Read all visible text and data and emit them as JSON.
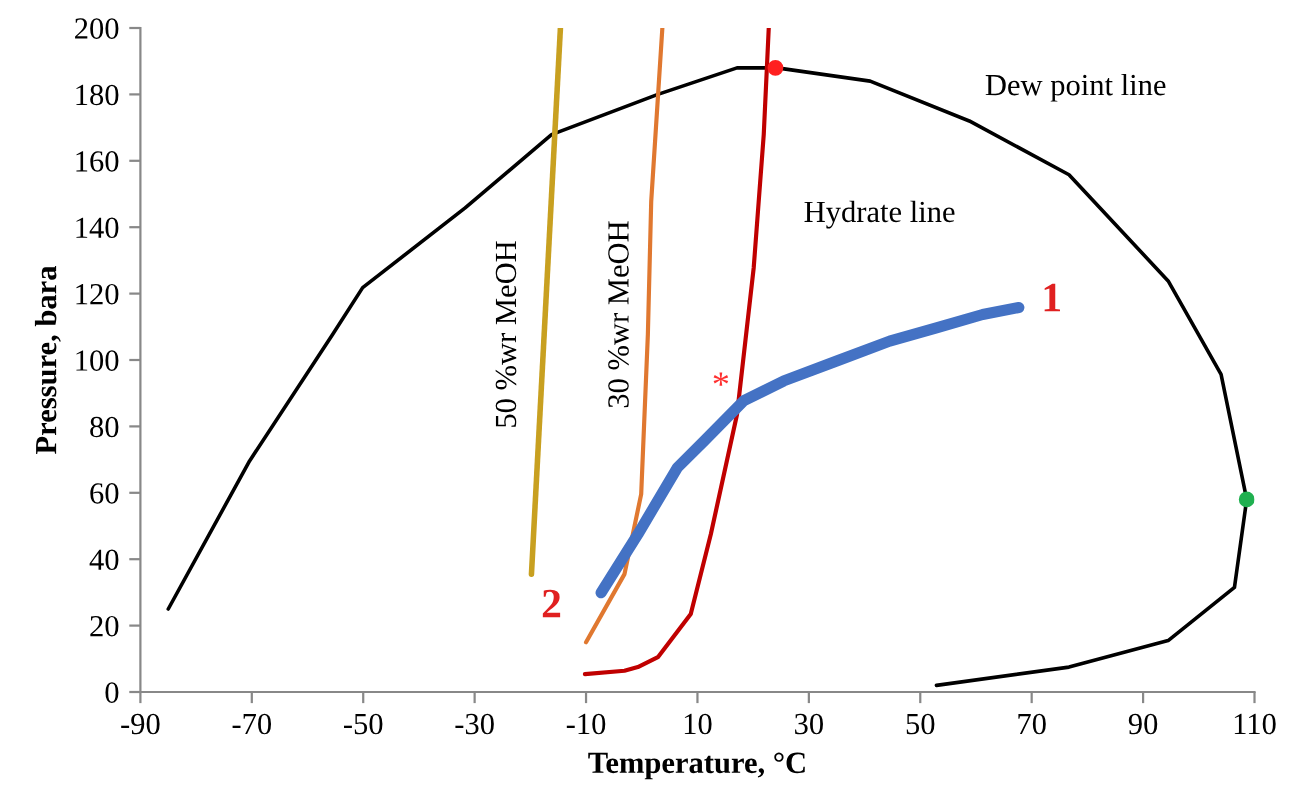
{
  "chart_data": {
    "type": "line",
    "xlabel": "Temperature, °C",
    "ylabel": "Pressure, bara",
    "xlim": [
      -90,
      110
    ],
    "xticks": [
      -90,
      -70,
      -50,
      -30,
      -10,
      10,
      30,
      50,
      70,
      90,
      110
    ],
    "ylim": [
      0,
      200
    ],
    "yticks": [
      0,
      20,
      40,
      60,
      80,
      100,
      120,
      140,
      160,
      180,
      200
    ],
    "grid": false,
    "legend": false,
    "line_style": "solid",
    "series": [
      {
        "name": "Dew point line",
        "color": "#000000",
        "x": [
          -85,
          -70.4,
          -55.5,
          -50.1,
          -31.7,
          -16.2,
          2.9,
          17.1,
          24.3,
          41,
          58.8,
          76.7,
          94.5,
          104,
          108.6,
          106.4,
          94.5,
          76.7,
          52.9
        ],
        "values": [
          25,
          69.6,
          107.7,
          121.8,
          145.8,
          167.9,
          180,
          188,
          188,
          184,
          172,
          155.8,
          123.8,
          95.7,
          58,
          31.5,
          15.5,
          7.5,
          2
        ]
      },
      {
        "name": "Hydrate line",
        "color": "#c00000",
        "x": [
          -10.2,
          -3.1,
          -0.7,
          2.9,
          8.8,
          12.4,
          17.1,
          20.1,
          21.9,
          22.8
        ],
        "values": [
          5.4,
          6.4,
          7.5,
          10.5,
          23.5,
          47.5,
          83.6,
          127.8,
          167.9,
          200
        ]
      },
      {
        "name": "30 %wr MeOH",
        "color": "#e07830",
        "x": [
          -10,
          -3.1,
          -0.1,
          1.1,
          1.7,
          3.7
        ],
        "values": [
          15,
          35.5,
          59.6,
          107.7,
          147.8,
          200
        ]
      },
      {
        "name": "50 %wr MeOH",
        "color": "#c8a020",
        "x": [
          -19.8,
          -14.6
        ],
        "values": [
          35.5,
          200
        ]
      },
      {
        "color": "#4472c4",
        "x": [
          -7.3,
          -0.7,
          6.4,
          11.2,
          18.3,
          25.5,
          35,
          44.5,
          52.9,
          61.2,
          67.7
        ],
        "values": [
          29.9,
          47.5,
          67.6,
          75.6,
          87.7,
          93.7,
          99.7,
          105.7,
          109.7,
          113.7,
          115.8
        ]
      },
      {
        "type": "scatter",
        "marker": "circle",
        "color": "#ff2020",
        "x": [
          24
        ],
        "values": [
          188
        ]
      },
      {
        "type": "scatter",
        "marker": "circle",
        "color": "#20b050",
        "x": [
          108.6
        ],
        "values": [
          58
        ]
      }
    ],
    "annotations": [
      "1",
      "2",
      "*"
    ]
  }
}
